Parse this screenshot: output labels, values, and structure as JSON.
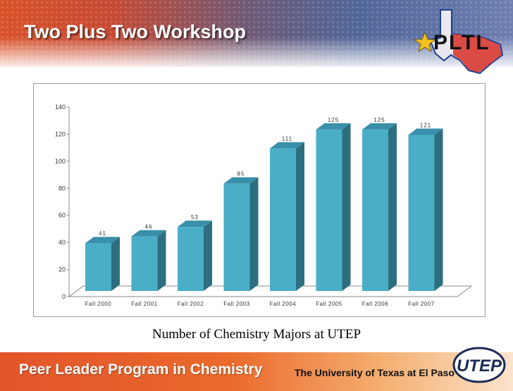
{
  "header": {
    "title": "Two Plus Two Workshop",
    "logo_text": "PLTL",
    "logo_star_color": "#f2c21b",
    "logo_map_colors": [
      "#1f3d8f",
      "#d83a32",
      "#ffffff"
    ]
  },
  "chart_data": {
    "type": "bar",
    "style": "3d",
    "categories": [
      "Fall 2000",
      "Fall 2001",
      "Fall 2002",
      "Fall 2003",
      "Fall 2004",
      "Fall 2005",
      "Fall 2006",
      "Fall 2007"
    ],
    "values": [
      41,
      46,
      53,
      85,
      111,
      125,
      125,
      121
    ],
    "data_labels": [
      "41",
      "46",
      "53",
      "85",
      "111",
      "125",
      "125",
      "121"
    ],
    "y_ticks": [
      "0",
      "20",
      "40",
      "60",
      "80",
      "100",
      "120",
      "140"
    ],
    "ylim": [
      0,
      140
    ],
    "grid": false,
    "legend": "none",
    "bar_color": "#4aaec7",
    "bar_top_color": "#3a8faa",
    "bar_side_color": "#2d6e80"
  },
  "caption": "Number of Chemistry Majors at UTEP",
  "footer": {
    "program": "Peer Leader Program in Chemistry",
    "university": "The University of Texas at El Paso",
    "logo_text": "UTEP"
  }
}
